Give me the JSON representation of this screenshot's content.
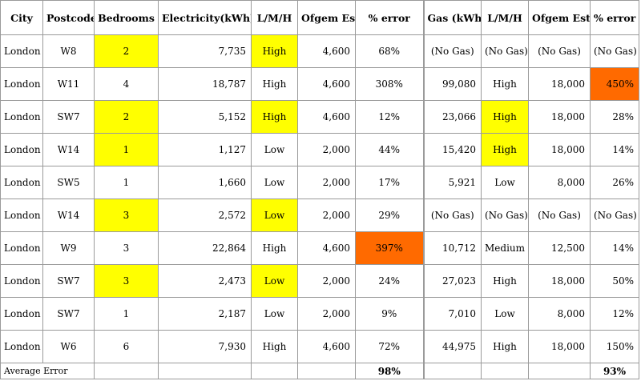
{
  "colors": {
    "highlight_yellow": "#ffff00",
    "highlight_orange": "#ff6a00"
  },
  "headers": [
    "City",
    "Postcode",
    "Bedrooms",
    "Electricity(kWh)",
    "L/M/H",
    "Ofgem Est.",
    "% error",
    "Gas (kWh)",
    "L/M/H",
    "Ofgem Est.",
    "% error"
  ],
  "rows": [
    {
      "cells": [
        "London",
        "W8",
        "2",
        "7,735",
        "High",
        "4,600",
        "68%",
        "(No Gas)",
        "(No Gas)",
        "(No Gas)",
        "(No Gas)"
      ]
    },
    {
      "cells": [
        "London",
        "W11",
        "4",
        "18,787",
        "High",
        "4,600",
        "308%",
        "99,080",
        "High",
        "18,000",
        "450%"
      ]
    },
    {
      "cells": [
        "London",
        "SW7",
        "2",
        "5,152",
        "High",
        "4,600",
        "12%",
        "23,066",
        "High",
        "18,000",
        "28%"
      ]
    },
    {
      "cells": [
        "London",
        "W14",
        "1",
        "1,127",
        "Low",
        "2,000",
        "44%",
        "15,420",
        "High",
        "18,000",
        "14%"
      ]
    },
    {
      "cells": [
        "London",
        "SW5",
        "1",
        "1,660",
        "Low",
        "2,000",
        "17%",
        "5,921",
        "Low",
        "8,000",
        "26%"
      ]
    },
    {
      "cells": [
        "London",
        "W14",
        "3",
        "2,572",
        "Low",
        "2,000",
        "29%",
        "(No Gas)",
        "(No Gas)",
        "(No Gas)",
        "(No Gas)"
      ]
    },
    {
      "cells": [
        "London",
        "W9",
        "3",
        "22,864",
        "High",
        "4,600",
        "397%",
        "10,712",
        "Medium",
        "12,500",
        "14%"
      ]
    },
    {
      "cells": [
        "London",
        "SW7",
        "3",
        "2,473",
        "Low",
        "2,000",
        "24%",
        "27,023",
        "High",
        "18,000",
        "50%"
      ]
    },
    {
      "cells": [
        "London",
        "SW7",
        "1",
        "2,187",
        "Low",
        "2,000",
        "9%",
        "7,010",
        "Low",
        "8,000",
        "12%"
      ]
    },
    {
      "cells": [
        "London",
        "W6",
        "6",
        "7,930",
        "High",
        "4,600",
        "72%",
        "44,975",
        "High",
        "18,000",
        "150%"
      ]
    }
  ],
  "average_row": {
    "label": "Average Error",
    "electricity_error": "98%",
    "gas_error": "93%"
  }
}
